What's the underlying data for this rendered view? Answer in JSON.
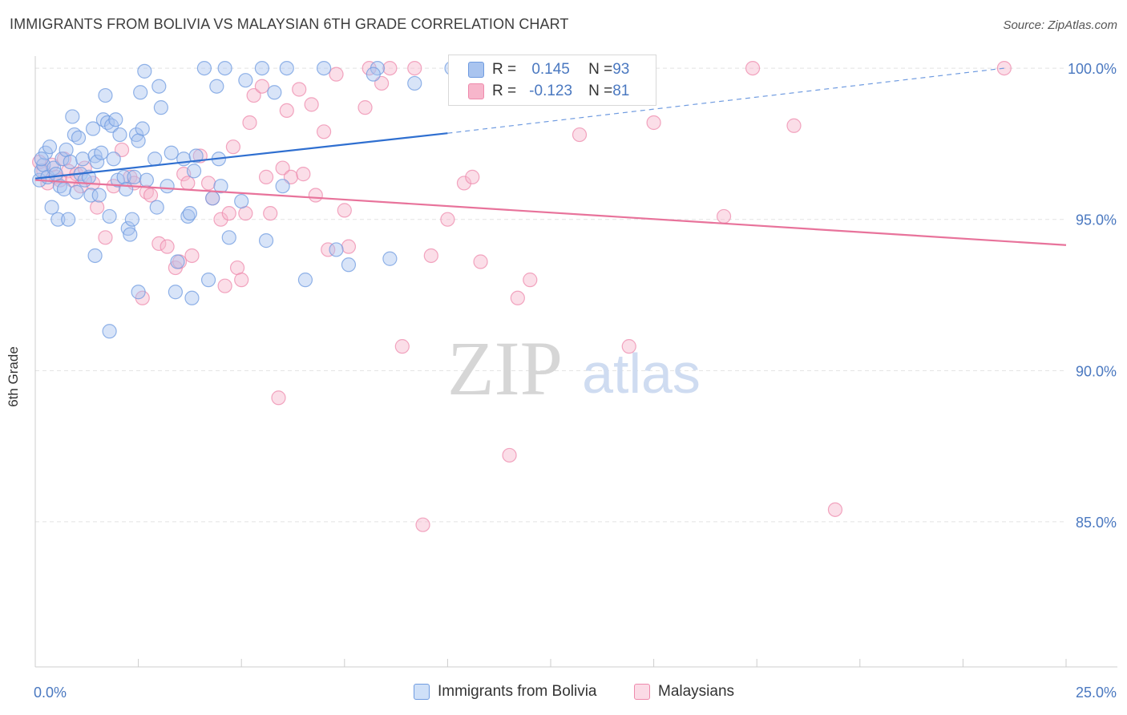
{
  "title": "IMMIGRANTS FROM BOLIVIA VS MALAYSIAN 6TH GRADE CORRELATION CHART",
  "source": "Source: ZipAtlas.com",
  "watermark": {
    "zip": "ZIP",
    "atlas": "atlas"
  },
  "legend_top": {
    "rows": [
      {
        "r_label": "R = ",
        "r_value": "0.145",
        "n_label": "N = ",
        "n_value": "93",
        "color": "#a9c4ef"
      },
      {
        "r_label": "R = ",
        "r_value": "-0.123",
        "n_label": "N = ",
        "n_value": "81",
        "color": "#f7b6cb"
      }
    ]
  },
  "legend_bottom": [
    {
      "label": "Immigrants from Bolivia",
      "color": "#a9c4ef"
    },
    {
      "label": "Malaysians",
      "color": "#f7b6cb"
    }
  ],
  "chart_data": {
    "type": "scatter",
    "title": "IMMIGRANTS FROM BOLIVIA VS MALAYSIAN 6TH GRADE CORRELATION CHART",
    "xlabel": "",
    "ylabel": "6th Grade",
    "xlim": [
      0.0,
      25.0
    ],
    "ylim": [
      80.2,
      100.4
    ],
    "x_tick_labels": [
      "0.0%",
      "25.0%"
    ],
    "y_ticks": [
      85.0,
      90.0,
      95.0,
      100.0
    ],
    "y_tick_labels": [
      "85.0%",
      "90.0%",
      "95.0%",
      "100.0%"
    ],
    "grid": true,
    "legend_placement": "bottom",
    "series": [
      {
        "name": "Immigrants from Bolivia",
        "color": "#6f9be0",
        "fill": "#a9c4ef",
        "trend": {
          "x": [
            0.0,
            10.0
          ],
          "y": [
            96.35,
            97.85
          ],
          "extended_x": [
            10.0,
            23.5
          ],
          "extended_y": [
            97.85,
            100.0
          ]
        },
        "points": [
          [
            0.1,
            96.3
          ],
          [
            0.15,
            96.6
          ],
          [
            0.2,
            96.8
          ],
          [
            0.25,
            97.2
          ],
          [
            0.3,
            96.4
          ],
          [
            0.35,
            97.4
          ],
          [
            0.4,
            95.4
          ],
          [
            0.45,
            96.7
          ],
          [
            0.5,
            96.5
          ],
          [
            0.55,
            95.0
          ],
          [
            0.6,
            96.1
          ],
          [
            0.65,
            97.0
          ],
          [
            0.7,
            96.0
          ],
          [
            0.75,
            97.3
          ],
          [
            0.8,
            95.0
          ],
          [
            0.85,
            96.9
          ],
          [
            0.9,
            98.4
          ],
          [
            0.95,
            97.8
          ],
          [
            1.0,
            95.9
          ],
          [
            1.05,
            97.7
          ],
          [
            1.1,
            96.5
          ],
          [
            1.15,
            97.0
          ],
          [
            1.2,
            96.3
          ],
          [
            1.3,
            96.4
          ],
          [
            1.35,
            95.8
          ],
          [
            1.4,
            98.0
          ],
          [
            1.45,
            97.1
          ],
          [
            1.5,
            96.9
          ],
          [
            1.55,
            95.8
          ],
          [
            1.6,
            97.2
          ],
          [
            1.65,
            98.3
          ],
          [
            1.7,
            99.1
          ],
          [
            1.75,
            98.2
          ],
          [
            1.8,
            95.1
          ],
          [
            1.85,
            98.1
          ],
          [
            1.9,
            97.0
          ],
          [
            1.95,
            98.3
          ],
          [
            2.0,
            96.3
          ],
          [
            2.05,
            97.8
          ],
          [
            2.15,
            96.4
          ],
          [
            2.2,
            96.0
          ],
          [
            2.25,
            94.7
          ],
          [
            2.3,
            94.5
          ],
          [
            2.35,
            95.0
          ],
          [
            2.4,
            96.4
          ],
          [
            2.45,
            97.8
          ],
          [
            2.5,
            97.6
          ],
          [
            2.55,
            99.2
          ],
          [
            2.6,
            98.0
          ],
          [
            2.65,
            99.9
          ],
          [
            2.7,
            96.3
          ],
          [
            2.9,
            97.0
          ],
          [
            2.95,
            95.4
          ],
          [
            3.0,
            99.4
          ],
          [
            3.05,
            98.7
          ],
          [
            3.2,
            96.1
          ],
          [
            3.3,
            97.2
          ],
          [
            3.4,
            92.6
          ],
          [
            3.45,
            93.6
          ],
          [
            3.6,
            97.0
          ],
          [
            3.7,
            95.1
          ],
          [
            3.75,
            95.2
          ],
          [
            3.8,
            92.4
          ],
          [
            3.85,
            96.6
          ],
          [
            3.9,
            97.1
          ],
          [
            4.1,
            100.0
          ],
          [
            4.2,
            93.0
          ],
          [
            4.3,
            95.7
          ],
          [
            4.4,
            99.4
          ],
          [
            4.45,
            97.0
          ],
          [
            4.5,
            96.1
          ],
          [
            4.6,
            100.0
          ],
          [
            4.7,
            94.4
          ],
          [
            5.0,
            95.6
          ],
          [
            5.1,
            99.6
          ],
          [
            5.5,
            100.0
          ],
          [
            5.6,
            94.3
          ],
          [
            5.8,
            99.2
          ],
          [
            6.0,
            96.1
          ],
          [
            6.1,
            100.0
          ],
          [
            6.55,
            93.0
          ],
          [
            7.0,
            100.0
          ],
          [
            7.3,
            94.0
          ],
          [
            7.6,
            93.5
          ],
          [
            8.3,
            100.0
          ],
          [
            8.6,
            93.7
          ],
          [
            9.2,
            99.5
          ],
          [
            10.1,
            100.0
          ],
          [
            1.45,
            93.8
          ],
          [
            0.15,
            97.0
          ],
          [
            1.8,
            91.3
          ],
          [
            8.2,
            99.8
          ],
          [
            2.5,
            92.6
          ]
        ]
      },
      {
        "name": "Malaysians",
        "color": "#ee8aac",
        "fill": "#f7b6cb",
        "trend": {
          "x": [
            0.0,
            25.0
          ],
          "y": [
            96.3,
            94.15
          ]
        },
        "points": [
          [
            0.1,
            96.9
          ],
          [
            0.2,
            96.6
          ],
          [
            0.3,
            96.2
          ],
          [
            0.4,
            96.8
          ],
          [
            0.5,
            96.4
          ],
          [
            0.6,
            96.3
          ],
          [
            0.7,
            97.0
          ],
          [
            0.8,
            96.6
          ],
          [
            0.9,
            96.3
          ],
          [
            1.0,
            96.5
          ],
          [
            1.1,
            96.1
          ],
          [
            1.2,
            96.7
          ],
          [
            1.4,
            96.2
          ],
          [
            1.5,
            95.4
          ],
          [
            1.7,
            94.4
          ],
          [
            1.9,
            96.1
          ],
          [
            2.1,
            97.3
          ],
          [
            2.3,
            96.4
          ],
          [
            2.4,
            96.2
          ],
          [
            2.6,
            92.4
          ],
          [
            2.7,
            95.9
          ],
          [
            2.8,
            95.8
          ],
          [
            3.0,
            94.2
          ],
          [
            3.2,
            94.1
          ],
          [
            3.4,
            93.4
          ],
          [
            3.5,
            93.6
          ],
          [
            3.6,
            96.5
          ],
          [
            3.7,
            96.2
          ],
          [
            3.8,
            93.8
          ],
          [
            4.0,
            97.1
          ],
          [
            4.2,
            96.2
          ],
          [
            4.3,
            95.7
          ],
          [
            4.5,
            95.0
          ],
          [
            4.6,
            92.8
          ],
          [
            4.7,
            95.2
          ],
          [
            4.8,
            97.4
          ],
          [
            4.9,
            93.4
          ],
          [
            5.0,
            93.0
          ],
          [
            5.1,
            95.2
          ],
          [
            5.2,
            98.2
          ],
          [
            5.3,
            99.1
          ],
          [
            5.5,
            99.4
          ],
          [
            5.6,
            96.4
          ],
          [
            5.7,
            95.2
          ],
          [
            5.9,
            89.1
          ],
          [
            6.0,
            96.7
          ],
          [
            6.1,
            98.6
          ],
          [
            6.2,
            96.4
          ],
          [
            6.4,
            99.3
          ],
          [
            6.5,
            96.5
          ],
          [
            6.7,
            98.8
          ],
          [
            6.8,
            95.8
          ],
          [
            7.0,
            97.9
          ],
          [
            7.1,
            94.0
          ],
          [
            7.3,
            99.8
          ],
          [
            7.5,
            95.3
          ],
          [
            7.6,
            94.1
          ],
          [
            8.0,
            98.7
          ],
          [
            8.1,
            100.0
          ],
          [
            8.4,
            99.5
          ],
          [
            8.6,
            100.0
          ],
          [
            9.2,
            100.0
          ],
          [
            9.6,
            93.8
          ],
          [
            10.0,
            95.0
          ],
          [
            10.4,
            96.2
          ],
          [
            10.6,
            96.4
          ],
          [
            10.8,
            93.6
          ],
          [
            11.7,
            92.4
          ],
          [
            12.0,
            93.0
          ],
          [
            12.5,
            100.0
          ],
          [
            13.2,
            97.8
          ],
          [
            14.4,
            90.8
          ],
          [
            15.0,
            98.2
          ],
          [
            16.7,
            95.1
          ],
          [
            17.4,
            100.0
          ],
          [
            18.4,
            98.1
          ],
          [
            23.5,
            100.0
          ],
          [
            8.9,
            90.8
          ],
          [
            11.5,
            87.2
          ],
          [
            9.4,
            84.9
          ],
          [
            19.4,
            85.4
          ]
        ]
      }
    ]
  }
}
